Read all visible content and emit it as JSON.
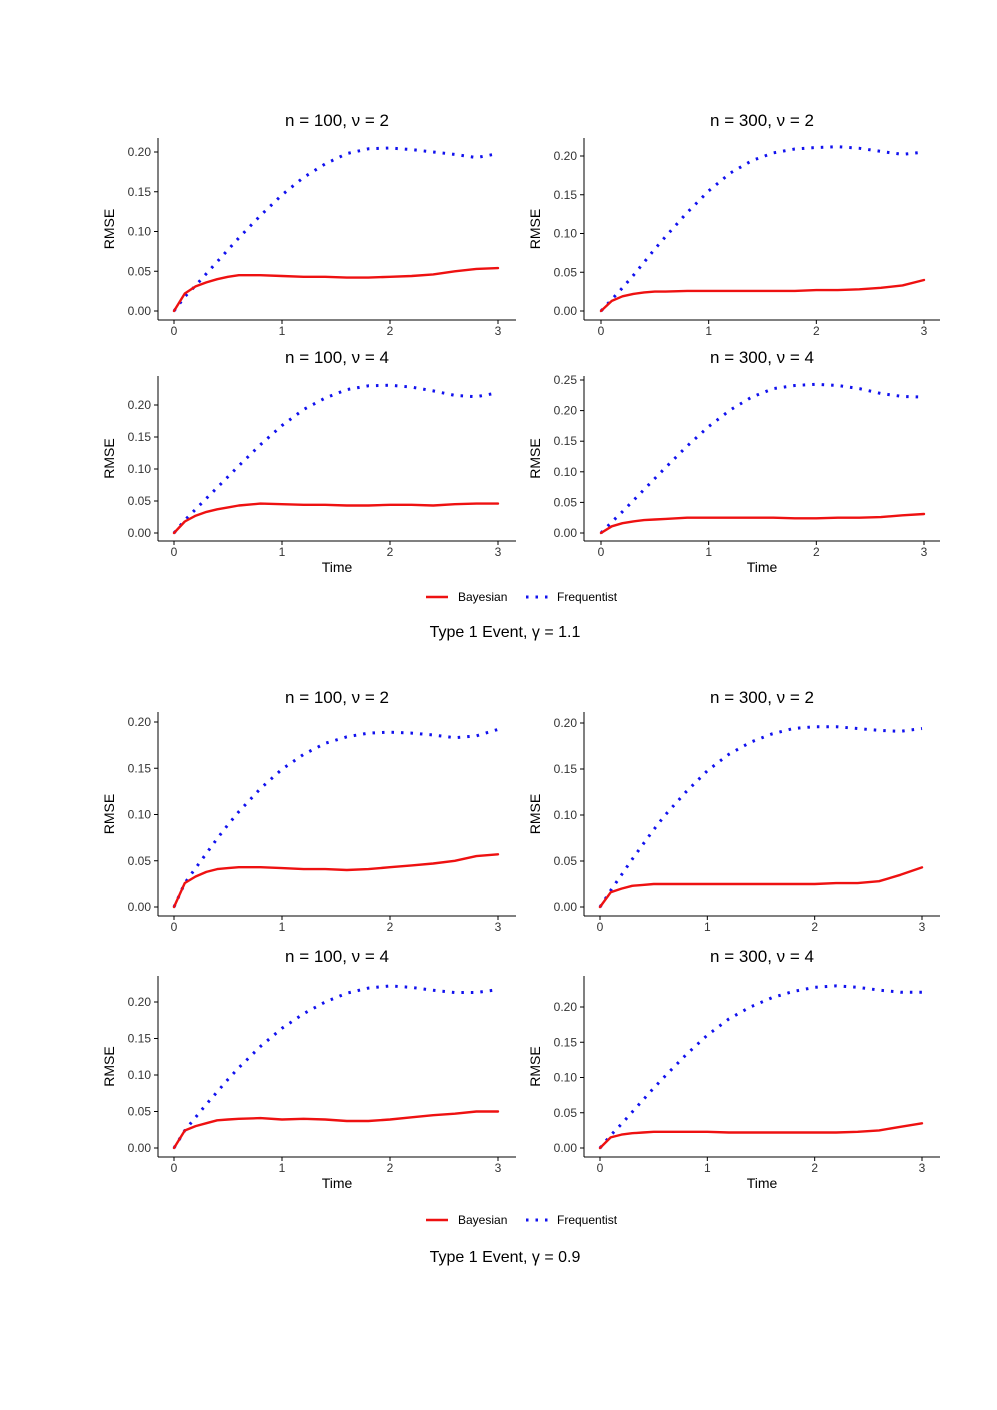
{
  "colors": {
    "bayesian": "#ee1111",
    "frequentist": "#1111ee",
    "axis": "#000000"
  },
  "chart_data": [
    {
      "type": "line",
      "title": "n = 100, ν = 2",
      "xlabel": "",
      "ylabel": "RMSE",
      "xlim": [
        0,
        3
      ],
      "ylim": [
        0,
        0.2
      ],
      "xticks": [
        "0",
        "1",
        "2",
        "3"
      ],
      "yticks": [
        "0.00",
        "0.05",
        "0.10",
        "0.15",
        "0.20"
      ],
      "grid": false,
      "x": [
        0,
        0.1,
        0.2,
        0.3,
        0.4,
        0.5,
        0.6,
        0.8,
        1.0,
        1.2,
        1.4,
        1.6,
        1.8,
        2.0,
        2.2,
        2.4,
        2.6,
        2.8,
        3.0
      ],
      "series": [
        {
          "name": "Bayesian",
          "style": "solid",
          "values": [
            0,
            0.022,
            0.031,
            0.036,
            0.04,
            0.043,
            0.045,
            0.045,
            0.044,
            0.043,
            0.043,
            0.042,
            0.042,
            0.043,
            0.044,
            0.046,
            0.05,
            0.053,
            0.054
          ]
        },
        {
          "name": "Frequentist",
          "style": "dotted",
          "values": [
            0,
            0.018,
            0.032,
            0.047,
            0.062,
            0.077,
            0.092,
            0.12,
            0.146,
            0.168,
            0.185,
            0.198,
            0.204,
            0.205,
            0.203,
            0.2,
            0.197,
            0.193,
            0.198
          ]
        }
      ]
    },
    {
      "type": "line",
      "title": "n = 300, ν = 2",
      "xlabel": "",
      "ylabel": "RMSE",
      "xlim": [
        0,
        3
      ],
      "ylim": [
        0,
        0.2
      ],
      "xticks": [
        "0",
        "1",
        "2",
        "3"
      ],
      "yticks": [
        "0.00",
        "0.05",
        "0.10",
        "0.15",
        "0.20"
      ],
      "grid": false,
      "x": [
        0,
        0.1,
        0.2,
        0.3,
        0.4,
        0.5,
        0.6,
        0.8,
        1.0,
        1.2,
        1.4,
        1.6,
        1.8,
        2.0,
        2.2,
        2.4,
        2.6,
        2.8,
        3.0
      ],
      "series": [
        {
          "name": "Bayesian",
          "style": "solid",
          "values": [
            0,
            0.013,
            0.019,
            0.022,
            0.024,
            0.025,
            0.025,
            0.026,
            0.026,
            0.026,
            0.026,
            0.026,
            0.026,
            0.027,
            0.027,
            0.028,
            0.03,
            0.033,
            0.04
          ]
        },
        {
          "name": "Frequentist",
          "style": "dotted",
          "values": [
            0,
            0.015,
            0.03,
            0.046,
            0.063,
            0.08,
            0.096,
            0.127,
            0.155,
            0.178,
            0.194,
            0.204,
            0.209,
            0.211,
            0.212,
            0.21,
            0.206,
            0.202,
            0.205
          ]
        }
      ]
    },
    {
      "type": "line",
      "title": "n = 100, ν = 4",
      "xlabel": "Time",
      "ylabel": "RMSE",
      "xlim": [
        0,
        3
      ],
      "ylim": [
        0,
        0.22
      ],
      "xticks": [
        "0",
        "1",
        "2",
        "3"
      ],
      "yticks": [
        "0.00",
        "0.05",
        "0.10",
        "0.15",
        "0.20"
      ],
      "grid": false,
      "x": [
        0,
        0.1,
        0.2,
        0.3,
        0.4,
        0.5,
        0.6,
        0.8,
        1.0,
        1.2,
        1.4,
        1.6,
        1.8,
        2.0,
        2.2,
        2.4,
        2.6,
        2.8,
        3.0
      ],
      "series": [
        {
          "name": "Bayesian",
          "style": "solid",
          "values": [
            0,
            0.018,
            0.027,
            0.033,
            0.037,
            0.04,
            0.043,
            0.046,
            0.045,
            0.044,
            0.044,
            0.043,
            0.043,
            0.044,
            0.044,
            0.043,
            0.045,
            0.046,
            0.046
          ]
        },
        {
          "name": "Frequentist",
          "style": "dotted",
          "values": [
            0,
            0.02,
            0.037,
            0.054,
            0.071,
            0.088,
            0.105,
            0.138,
            0.168,
            0.193,
            0.211,
            0.224,
            0.23,
            0.231,
            0.228,
            0.222,
            0.215,
            0.213,
            0.219
          ]
        }
      ]
    },
    {
      "type": "line",
      "title": "n = 300, ν = 4",
      "xlabel": "Time",
      "ylabel": "RMSE",
      "xlim": [
        0,
        3
      ],
      "ylim": [
        0,
        0.25
      ],
      "xticks": [
        "0",
        "1",
        "2",
        "3"
      ],
      "yticks": [
        "0.00",
        "0.05",
        "0.10",
        "0.15",
        "0.20",
        "0.25"
      ],
      "grid": false,
      "x": [
        0,
        0.1,
        0.2,
        0.3,
        0.4,
        0.5,
        0.6,
        0.8,
        1.0,
        1.2,
        1.4,
        1.6,
        1.8,
        2.0,
        2.2,
        2.4,
        2.6,
        2.8,
        3.0
      ],
      "series": [
        {
          "name": "Bayesian",
          "style": "solid",
          "values": [
            0,
            0.011,
            0.016,
            0.019,
            0.021,
            0.022,
            0.023,
            0.025,
            0.025,
            0.025,
            0.025,
            0.025,
            0.024,
            0.024,
            0.025,
            0.025,
            0.026,
            0.029,
            0.031
          ]
        },
        {
          "name": "Frequentist",
          "style": "dotted",
          "values": [
            0,
            0.018,
            0.035,
            0.053,
            0.071,
            0.089,
            0.107,
            0.142,
            0.174,
            0.201,
            0.222,
            0.236,
            0.241,
            0.243,
            0.241,
            0.236,
            0.228,
            0.223,
            0.222
          ]
        }
      ]
    },
    {
      "type": "line",
      "title": "n = 100, ν = 2",
      "xlabel": "",
      "ylabel": "RMSE",
      "xlim": [
        0,
        3
      ],
      "ylim": [
        0,
        0.2
      ],
      "xticks": [
        "0",
        "1",
        "2",
        "3"
      ],
      "yticks": [
        "0.00",
        "0.05",
        "0.10",
        "0.15",
        "0.20"
      ],
      "grid": false,
      "x": [
        0,
        0.1,
        0.2,
        0.3,
        0.4,
        0.5,
        0.6,
        0.8,
        1.0,
        1.2,
        1.4,
        1.6,
        1.8,
        2.0,
        2.2,
        2.4,
        2.6,
        2.8,
        3.0
      ],
      "series": [
        {
          "name": "Bayesian",
          "style": "solid",
          "values": [
            0,
            0.026,
            0.033,
            0.038,
            0.041,
            0.042,
            0.043,
            0.043,
            0.042,
            0.041,
            0.041,
            0.04,
            0.041,
            0.043,
            0.045,
            0.047,
            0.05,
            0.055,
            0.057
          ]
        },
        {
          "name": "Frequentist",
          "style": "dotted",
          "values": [
            0,
            0.026,
            0.042,
            0.058,
            0.074,
            0.089,
            0.103,
            0.128,
            0.149,
            0.165,
            0.177,
            0.184,
            0.188,
            0.189,
            0.188,
            0.186,
            0.183,
            0.185,
            0.192
          ]
        }
      ]
    },
    {
      "type": "line",
      "title": "n = 300, ν = 2",
      "xlabel": "",
      "ylabel": "RMSE",
      "xlim": [
        0,
        3
      ],
      "ylim": [
        0,
        0.2
      ],
      "xticks": [
        "0",
        "1",
        "2",
        "3"
      ],
      "yticks": [
        "0.00",
        "0.05",
        "0.10",
        "0.15",
        "0.20"
      ],
      "grid": false,
      "x": [
        0,
        0.1,
        0.2,
        0.3,
        0.4,
        0.5,
        0.6,
        0.8,
        1.0,
        1.2,
        1.4,
        1.6,
        1.8,
        2.0,
        2.2,
        2.4,
        2.6,
        2.8,
        3.0
      ],
      "series": [
        {
          "name": "Bayesian",
          "style": "solid",
          "values": [
            0,
            0.016,
            0.02,
            0.023,
            0.024,
            0.025,
            0.025,
            0.025,
            0.025,
            0.025,
            0.025,
            0.025,
            0.025,
            0.025,
            0.026,
            0.026,
            0.028,
            0.035,
            0.043
          ]
        },
        {
          "name": "Frequentist",
          "style": "dotted",
          "values": [
            0,
            0.018,
            0.035,
            0.052,
            0.068,
            0.084,
            0.099,
            0.125,
            0.148,
            0.166,
            0.179,
            0.188,
            0.194,
            0.196,
            0.196,
            0.194,
            0.192,
            0.191,
            0.194
          ]
        }
      ]
    },
    {
      "type": "line",
      "title": "n = 100, ν = 4",
      "xlabel": "Time",
      "ylabel": "RMSE",
      "xlim": [
        0,
        3
      ],
      "ylim": [
        0,
        0.22
      ],
      "xticks": [
        "0",
        "1",
        "2",
        "3"
      ],
      "yticks": [
        "0.00",
        "0.05",
        "0.10",
        "0.15",
        "0.20"
      ],
      "grid": false,
      "x": [
        0,
        0.1,
        0.2,
        0.3,
        0.4,
        0.5,
        0.6,
        0.8,
        1.0,
        1.2,
        1.4,
        1.6,
        1.8,
        2.0,
        2.2,
        2.4,
        2.6,
        2.8,
        3.0
      ],
      "series": [
        {
          "name": "Bayesian",
          "style": "solid",
          "values": [
            0,
            0.024,
            0.03,
            0.034,
            0.038,
            0.039,
            0.04,
            0.041,
            0.039,
            0.04,
            0.039,
            0.037,
            0.037,
            0.039,
            0.042,
            0.045,
            0.047,
            0.05,
            0.05
          ]
        },
        {
          "name": "Frequentist",
          "style": "dotted",
          "values": [
            0,
            0.024,
            0.042,
            0.06,
            0.077,
            0.094,
            0.11,
            0.139,
            0.164,
            0.184,
            0.2,
            0.212,
            0.219,
            0.222,
            0.22,
            0.216,
            0.213,
            0.213,
            0.217
          ]
        }
      ]
    },
    {
      "type": "line",
      "title": "n = 300, ν = 4",
      "xlabel": "Time",
      "ylabel": "RMSE",
      "xlim": [
        0,
        3
      ],
      "ylim": [
        0,
        0.22
      ],
      "xticks": [
        "0",
        "1",
        "2",
        "3"
      ],
      "yticks": [
        "0.00",
        "0.05",
        "0.10",
        "0.15",
        "0.20"
      ],
      "grid": false,
      "x": [
        0,
        0.1,
        0.2,
        0.3,
        0.4,
        0.5,
        0.6,
        0.8,
        1.0,
        1.2,
        1.4,
        1.6,
        1.8,
        2.0,
        2.2,
        2.4,
        2.6,
        2.8,
        3.0
      ],
      "series": [
        {
          "name": "Bayesian",
          "style": "solid",
          "values": [
            0,
            0.015,
            0.019,
            0.021,
            0.022,
            0.023,
            0.023,
            0.023,
            0.023,
            0.022,
            0.022,
            0.022,
            0.022,
            0.022,
            0.022,
            0.023,
            0.025,
            0.03,
            0.035
          ]
        },
        {
          "name": "Frequentist",
          "style": "dotted",
          "values": [
            0,
            0.018,
            0.034,
            0.051,
            0.068,
            0.085,
            0.101,
            0.132,
            0.16,
            0.183,
            0.2,
            0.213,
            0.222,
            0.228,
            0.23,
            0.228,
            0.224,
            0.221,
            0.221
          ]
        }
      ]
    }
  ],
  "groups": [
    {
      "legend": [
        {
          "label": "Bayesian"
        },
        {
          "label": "Frequentist"
        }
      ],
      "caption": "Type 1 Event,  γ = 1.1"
    },
    {
      "legend": [
        {
          "label": "Bayesian"
        },
        {
          "label": "Frequentist"
        }
      ],
      "caption": "Type 1 Event,  γ = 0.9"
    }
  ]
}
